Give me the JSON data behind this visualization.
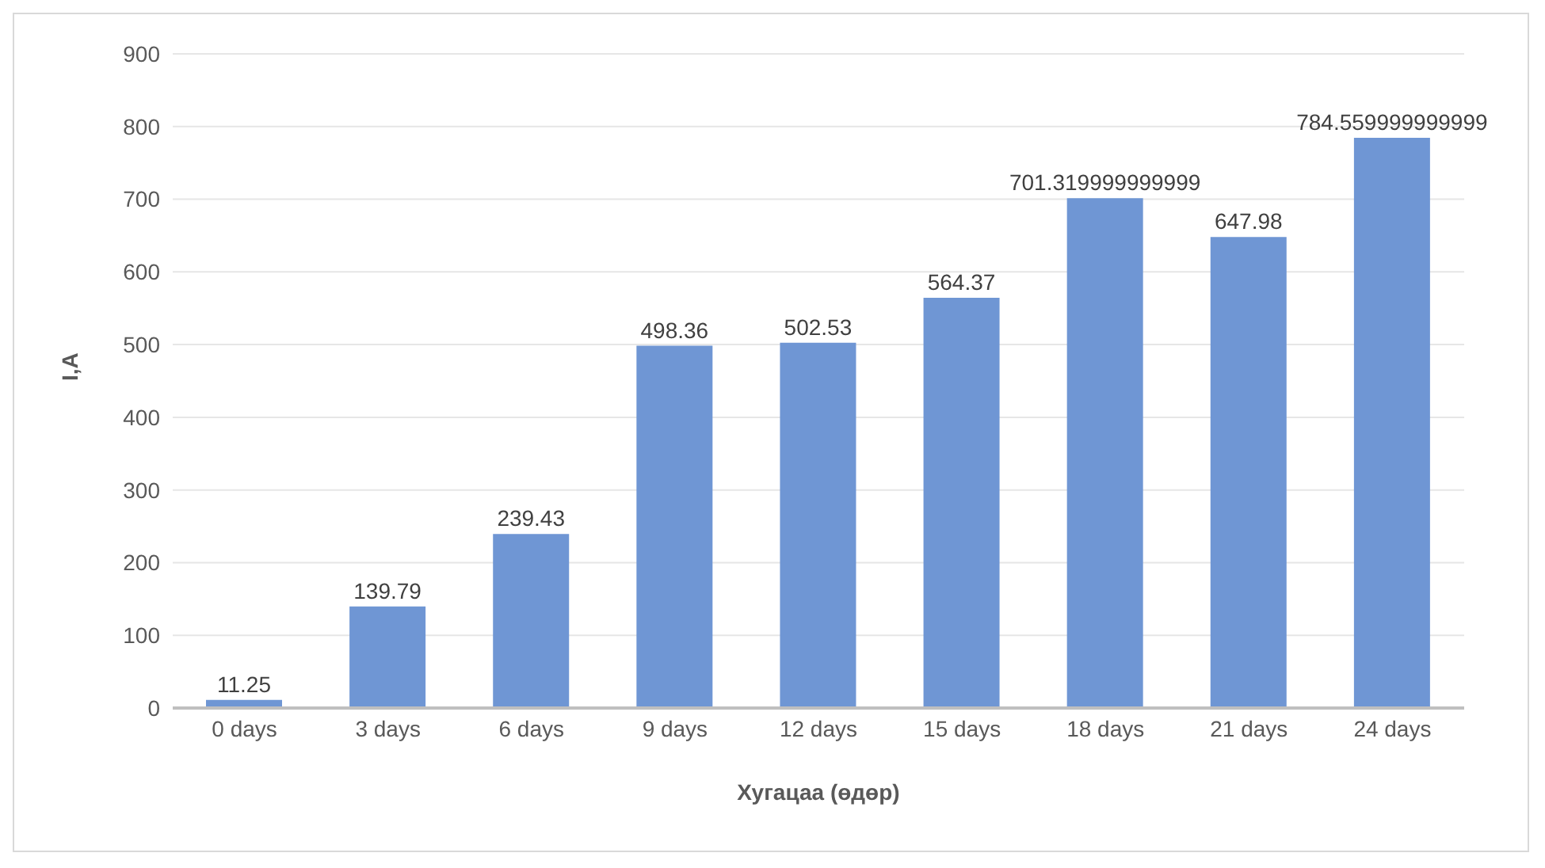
{
  "chart_data": {
    "type": "bar",
    "xlabel": "Хугацаа (өдөр)",
    "ylabel": "I,A",
    "categories": [
      "0 days",
      "3 days",
      "6 days",
      "9 days",
      "12 days",
      "15 days",
      "18 days",
      "21 days",
      "24 days"
    ],
    "values": [
      11.25,
      139.79,
      239.43,
      498.36,
      502.53,
      564.37,
      701.32,
      647.98,
      784.56
    ],
    "value_labels": [
      "11.25",
      "139.79",
      "239.43",
      "498.36",
      "502.53",
      "564.37",
      "701.319999999999",
      "647.98",
      "784.559999999999"
    ],
    "color": "#6f96d4",
    "ylim": [
      0,
      900
    ],
    "yticks": [
      0,
      100,
      200,
      300,
      400,
      500,
      600,
      700,
      800,
      900
    ],
    "grid": "y"
  }
}
